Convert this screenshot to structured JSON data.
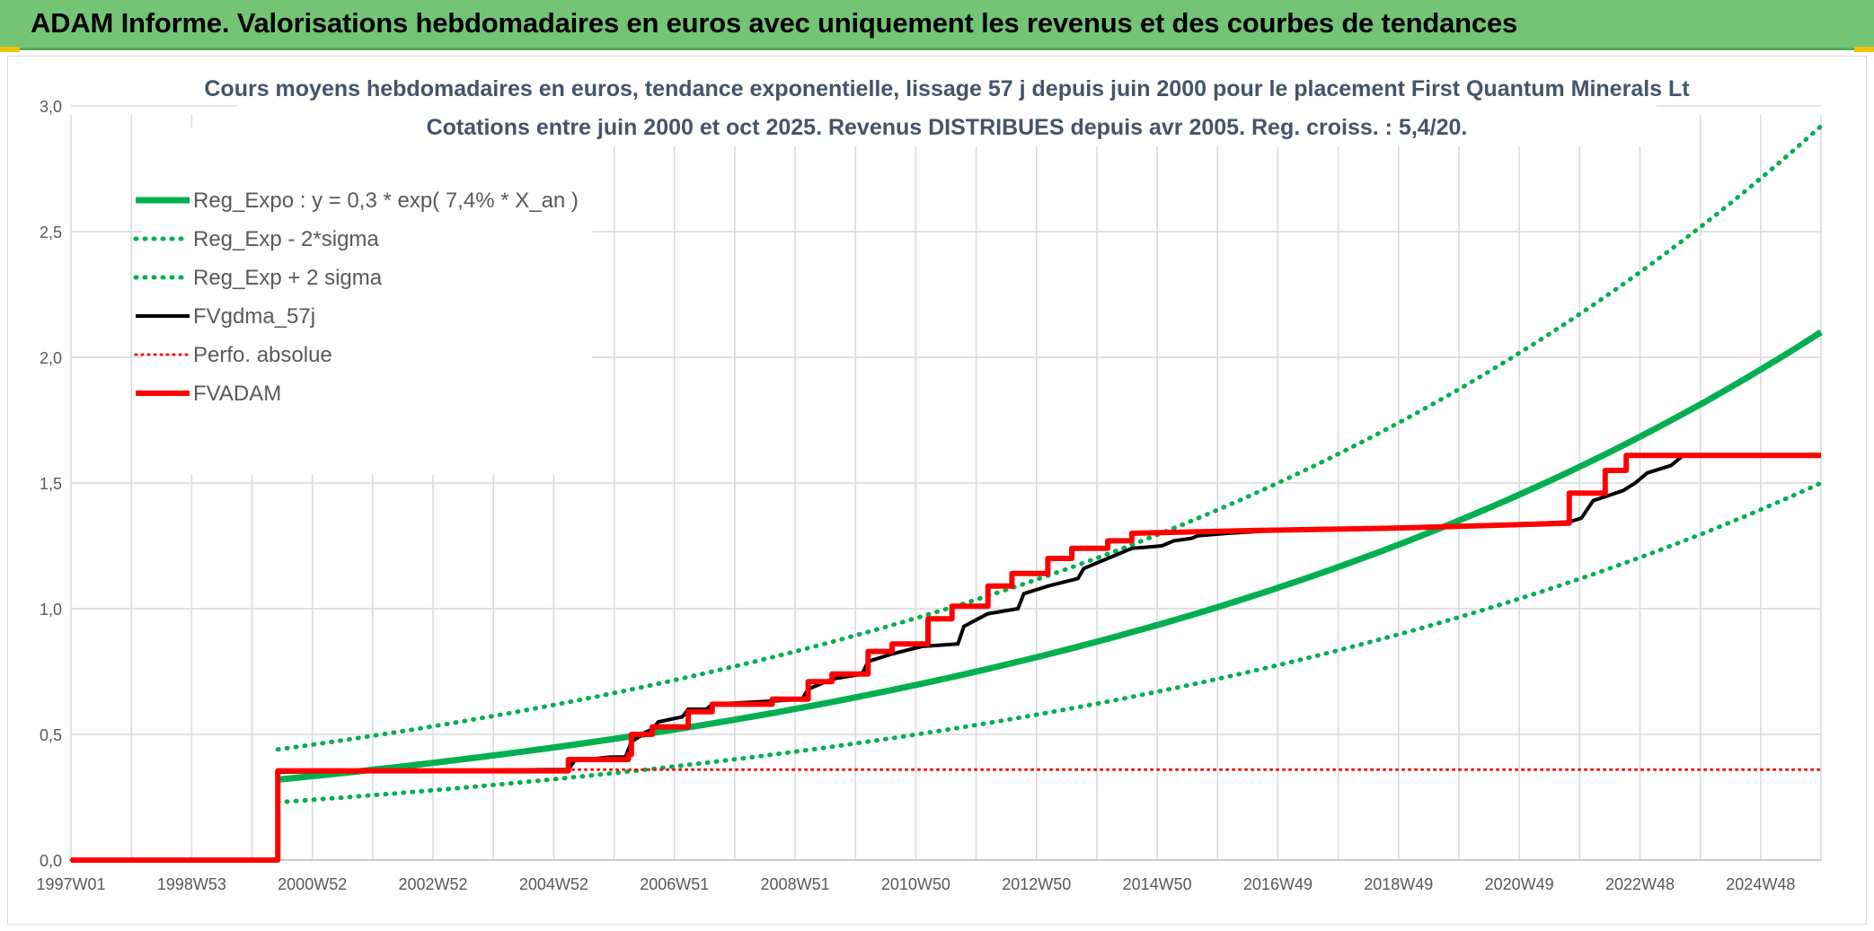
{
  "header": {
    "title": "ADAM Informe. Valorisations hebdomadaires en euros avec uniquement les revenus et des courbes de tendances"
  },
  "colors": {
    "banner": "#74c476",
    "trend_green": "#00b050",
    "fvadam_red": "#ff0000",
    "fvgdma_black": "#000000",
    "grid": "#d9d9d9"
  },
  "chart_data": {
    "type": "line",
    "title": "Cours moyens hebdomadaires en euros, tendance exponentielle, lissage 57 j depuis juin 2000 pour le placement First Quantum Minerals Lt",
    "subtitle": "Cotations entre juin 2000 et oct 2025. Revenus DISTRIBUES depuis avr 2005. Reg. croiss. : 5,4/20.",
    "xlabel": "",
    "ylabel": "",
    "x_ticks": [
      "1997W01",
      "1998W53",
      "2000W52",
      "2002W52",
      "2004W52",
      "2006W51",
      "2008W51",
      "2010W50",
      "2012W50",
      "2014W50",
      "2016W49",
      "2018W49",
      "2020W49",
      "2022W48",
      "2024W48"
    ],
    "xlim": [
      1997.0,
      2026.2
    ],
    "ylim": [
      0,
      3.0
    ],
    "y_ticks": [
      "0,0",
      "0,5",
      "1,0",
      "1,5",
      "2,0",
      "2,5",
      "3,0"
    ],
    "y_tick_values": [
      0,
      0.5,
      1.0,
      1.5,
      2.0,
      2.5,
      3.0
    ],
    "grid": true,
    "legend_position": "top-left",
    "series": [
      {
        "name": "Reg_Expo : y = 0,3 * exp( 7,4% *  X_an )",
        "style": "solid-thick-green",
        "points": [
          [
            2000.45,
            0.32
          ],
          [
            2003.0,
            0.41
          ],
          [
            2006.0,
            0.51
          ],
          [
            2009.0,
            0.64
          ],
          [
            2012.0,
            0.79
          ],
          [
            2015.0,
            0.98
          ],
          [
            2018.0,
            1.22
          ],
          [
            2021.0,
            1.52
          ],
          [
            2024.0,
            1.86
          ],
          [
            2026.2,
            2.1
          ]
        ]
      },
      {
        "name": "Reg_Exp - 2*sigma",
        "style": "dotted-green",
        "points": [
          [
            2000.45,
            0.23
          ],
          [
            2003.0,
            0.28
          ],
          [
            2006.0,
            0.36
          ],
          [
            2009.0,
            0.45
          ],
          [
            2012.0,
            0.56
          ],
          [
            2015.0,
            0.7
          ],
          [
            2018.0,
            0.87
          ],
          [
            2021.0,
            1.08
          ],
          [
            2024.0,
            1.33
          ],
          [
            2026.2,
            1.5
          ]
        ]
      },
      {
        "name": "Reg_Exp + 2 sigma",
        "style": "dotted-green",
        "points": [
          [
            2000.45,
            0.44
          ],
          [
            2003.0,
            0.54
          ],
          [
            2006.0,
            0.68
          ],
          [
            2009.0,
            0.86
          ],
          [
            2012.0,
            1.09
          ],
          [
            2015.0,
            1.37
          ],
          [
            2018.0,
            1.72
          ],
          [
            2021.0,
            2.15
          ],
          [
            2024.0,
            2.62
          ],
          [
            2026.2,
            2.92
          ]
        ]
      },
      {
        "name": "FVgdma_57j",
        "style": "solid-black",
        "points": [
          [
            1997.0,
            0.0
          ],
          [
            2000.45,
            0.0
          ],
          [
            2000.45,
            0.35
          ],
          [
            2003.0,
            0.355
          ],
          [
            2005.0,
            0.36
          ],
          [
            2005.3,
            0.36
          ],
          [
            2005.4,
            0.395
          ],
          [
            2006.0,
            0.41
          ],
          [
            2006.25,
            0.41
          ],
          [
            2006.35,
            0.47
          ],
          [
            2006.6,
            0.51
          ],
          [
            2006.7,
            0.52
          ],
          [
            2006.8,
            0.55
          ],
          [
            2007.2,
            0.57
          ],
          [
            2007.3,
            0.6
          ],
          [
            2007.6,
            0.6
          ],
          [
            2007.7,
            0.62
          ],
          [
            2008.5,
            0.63
          ],
          [
            2009.2,
            0.64
          ],
          [
            2009.3,
            0.68
          ],
          [
            2009.7,
            0.72
          ],
          [
            2010.2,
            0.74
          ],
          [
            2010.3,
            0.79
          ],
          [
            2010.7,
            0.82
          ],
          [
            2011.2,
            0.85
          ],
          [
            2011.8,
            0.86
          ],
          [
            2011.9,
            0.93
          ],
          [
            2012.3,
            0.98
          ],
          [
            2012.8,
            1.0
          ],
          [
            2012.9,
            1.06
          ],
          [
            2013.3,
            1.09
          ],
          [
            2013.8,
            1.12
          ],
          [
            2013.9,
            1.16
          ],
          [
            2014.3,
            1.2
          ],
          [
            2014.5,
            1.22
          ],
          [
            2014.7,
            1.24
          ],
          [
            2015.2,
            1.25
          ],
          [
            2015.4,
            1.27
          ],
          [
            2015.7,
            1.28
          ],
          [
            2015.8,
            1.29
          ],
          [
            2016.3,
            1.3
          ],
          [
            2017.0,
            1.31
          ],
          [
            2019.0,
            1.32
          ],
          [
            2021.0,
            1.335
          ],
          [
            2022.0,
            1.345
          ],
          [
            2022.2,
            1.36
          ],
          [
            2022.4,
            1.43
          ],
          [
            2022.9,
            1.47
          ],
          [
            2023.1,
            1.5
          ],
          [
            2023.3,
            1.54
          ],
          [
            2023.7,
            1.57
          ],
          [
            2023.9,
            1.61
          ],
          [
            2026.2,
            1.61
          ]
        ]
      },
      {
        "name": "Perfo. absolue",
        "style": "dotted-red",
        "points": [
          [
            1997.0,
            0.0
          ],
          [
            2000.45,
            0.0
          ],
          [
            2000.45,
            0.355
          ],
          [
            2005.0,
            0.36
          ],
          [
            2026.2,
            0.36
          ]
        ]
      },
      {
        "name": "FVADAM",
        "style": "solid-thick-red",
        "points": [
          [
            1997.0,
            0.0
          ],
          [
            2000.45,
            0.0
          ],
          [
            2000.45,
            0.355
          ],
          [
            2005.3,
            0.355
          ],
          [
            2005.3,
            0.4
          ],
          [
            2006.3,
            0.4
          ],
          [
            2006.3,
            0.42
          ],
          [
            2006.35,
            0.42
          ],
          [
            2006.35,
            0.5
          ],
          [
            2006.7,
            0.5
          ],
          [
            2006.7,
            0.53
          ],
          [
            2007.3,
            0.53
          ],
          [
            2007.3,
            0.59
          ],
          [
            2007.7,
            0.59
          ],
          [
            2007.7,
            0.62
          ],
          [
            2008.7,
            0.62
          ],
          [
            2008.7,
            0.64
          ],
          [
            2009.3,
            0.64
          ],
          [
            2009.3,
            0.71
          ],
          [
            2009.7,
            0.71
          ],
          [
            2009.7,
            0.74
          ],
          [
            2010.3,
            0.74
          ],
          [
            2010.3,
            0.83
          ],
          [
            2010.7,
            0.83
          ],
          [
            2010.7,
            0.86
          ],
          [
            2011.3,
            0.86
          ],
          [
            2011.3,
            0.96
          ],
          [
            2011.7,
            0.96
          ],
          [
            2011.7,
            1.01
          ],
          [
            2012.3,
            1.01
          ],
          [
            2012.3,
            1.09
          ],
          [
            2012.7,
            1.09
          ],
          [
            2012.7,
            1.14
          ],
          [
            2013.3,
            1.14
          ],
          [
            2013.3,
            1.2
          ],
          [
            2013.7,
            1.2
          ],
          [
            2013.7,
            1.24
          ],
          [
            2014.3,
            1.24
          ],
          [
            2014.3,
            1.27
          ],
          [
            2014.7,
            1.27
          ],
          [
            2014.7,
            1.3
          ],
          [
            2016.5,
            1.31
          ],
          [
            2019.0,
            1.32
          ],
          [
            2022.0,
            1.34
          ],
          [
            2022.0,
            1.46
          ],
          [
            2022.6,
            1.46
          ],
          [
            2022.6,
            1.55
          ],
          [
            2022.95,
            1.55
          ],
          [
            2022.95,
            1.61
          ],
          [
            2026.2,
            1.61
          ]
        ]
      }
    ]
  }
}
